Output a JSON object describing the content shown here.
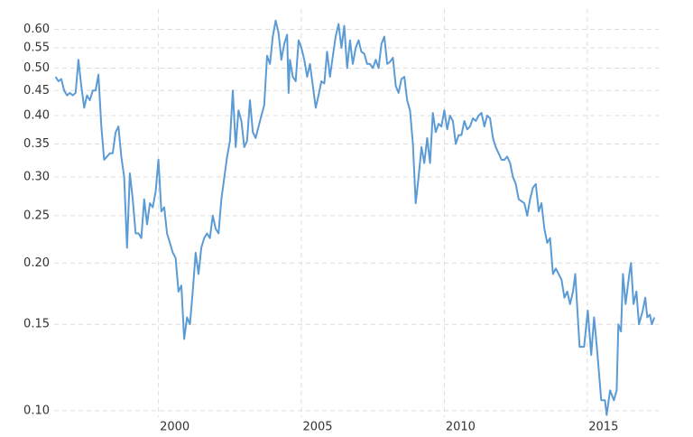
{
  "chart_data": {
    "type": "line",
    "log_y": true,
    "grid": true,
    "xlim": [
      1996.35,
      2017.5
    ],
    "xticks": [
      2000,
      2005,
      2010,
      2015
    ],
    "ylim": [
      0.097,
      0.66
    ],
    "yticks": [
      {
        "value": 0.1,
        "label": "0.10"
      },
      0.15,
      {
        "value": 0.2,
        "label": "0.20"
      },
      0.25,
      {
        "value": 0.3,
        "label": "0.30"
      },
      0.35,
      {
        "value": 0.4,
        "label": "0.40"
      },
      0.45,
      {
        "value": 0.5,
        "label": "0.50"
      },
      0.55,
      {
        "value": 0.6,
        "label": "0.60"
      }
    ],
    "series": [
      {
        "color": "#5b9bd5",
        "x": [
          1996.4,
          1996.5,
          1996.6,
          1996.7,
          1996.8,
          1996.9,
          1997.0,
          1997.1,
          1997.2,
          1997.3,
          1997.4,
          1997.5,
          1997.6,
          1997.7,
          1997.8,
          1997.9,
          1998.0,
          1998.1,
          1998.2,
          1998.3,
          1998.4,
          1998.5,
          1998.6,
          1998.7,
          1998.8,
          1998.9,
          1999.0,
          1999.1,
          1999.2,
          1999.3,
          1999.4,
          1999.5,
          1999.6,
          1999.7,
          1999.8,
          1999.9,
          2000.0,
          2000.1,
          2000.2,
          2000.3,
          2000.4,
          2000.5,
          2000.6,
          2000.7,
          2000.8,
          2000.9,
          2001.0,
          2001.1,
          2001.2,
          2001.3,
          2001.4,
          2001.5,
          2001.6,
          2001.7,
          2001.8,
          2001.9,
          2002.0,
          2002.1,
          2002.2,
          2002.4,
          2002.5,
          2002.6,
          2002.7,
          2002.8,
          2002.9,
          2003.0,
          2003.1,
          2003.2,
          2003.3,
          2003.4,
          2003.6,
          2003.7,
          2003.8,
          2003.9,
          2004.0,
          2004.1,
          2004.2,
          2004.3,
          2004.4,
          2004.5,
          2004.55,
          2004.6,
          2004.7,
          2004.8,
          2004.9,
          2005.0,
          2005.1,
          2005.2,
          2005.3,
          2005.4,
          2005.5,
          2005.6,
          2005.7,
          2005.8,
          2005.9,
          2006.0,
          2006.1,
          2006.2,
          2006.3,
          2006.4,
          2006.5,
          2006.6,
          2006.7,
          2006.8,
          2006.9,
          2007.0,
          2007.1,
          2007.2,
          2007.3,
          2007.4,
          2007.5,
          2007.6,
          2007.7,
          2007.8,
          2007.9,
          2008.0,
          2008.1,
          2008.2,
          2008.3,
          2008.4,
          2008.5,
          2008.6,
          2008.7,
          2008.8,
          2008.9,
          2009.0,
          2009.1,
          2009.2,
          2009.3,
          2009.4,
          2009.5,
          2009.6,
          2009.7,
          2009.8,
          2009.9,
          2010.0,
          2010.1,
          2010.2,
          2010.3,
          2010.4,
          2010.5,
          2010.6,
          2010.7,
          2010.8,
          2010.9,
          2011.0,
          2011.1,
          2011.2,
          2011.3,
          2011.4,
          2011.5,
          2011.6,
          2011.7,
          2011.8,
          2011.9,
          2012.0,
          2012.1,
          2012.2,
          2012.3,
          2012.4,
          2012.5,
          2012.6,
          2012.8,
          2012.9,
          2013.0,
          2013.1,
          2013.2,
          2013.3,
          2013.4,
          2013.5,
          2013.6,
          2013.7,
          2013.8,
          2013.9,
          2014.0,
          2014.1,
          2014.2,
          2014.3,
          2014.4,
          2014.5,
          2014.58,
          2014.73,
          2014.89,
          2015.02,
          2015.14,
          2015.24,
          2015.36,
          2015.49,
          2015.62,
          2015.68,
          2015.8,
          2015.93,
          2016.03,
          2016.09,
          2016.18,
          2016.25,
          2016.34,
          2016.47,
          2016.53,
          2016.62,
          2016.72,
          2016.81,
          2016.94,
          2017.03,
          2017.1,
          2017.19,
          2017.26,
          2017.35
        ],
        "values": [
          0.48,
          0.47,
          0.475,
          0.45,
          0.44,
          0.445,
          0.44,
          0.445,
          0.52,
          0.46,
          0.415,
          0.44,
          0.43,
          0.45,
          0.45,
          0.485,
          0.38,
          0.325,
          0.33,
          0.335,
          0.335,
          0.37,
          0.38,
          0.33,
          0.3,
          0.215,
          0.305,
          0.27,
          0.23,
          0.23,
          0.225,
          0.27,
          0.24,
          0.265,
          0.26,
          0.28,
          0.325,
          0.255,
          0.26,
          0.23,
          0.22,
          0.21,
          0.205,
          0.175,
          0.18,
          0.14,
          0.155,
          0.15,
          0.175,
          0.21,
          0.19,
          0.215,
          0.225,
          0.23,
          0.225,
          0.25,
          0.235,
          0.23,
          0.27,
          0.33,
          0.355,
          0.45,
          0.345,
          0.41,
          0.39,
          0.345,
          0.355,
          0.43,
          0.37,
          0.36,
          0.4,
          0.42,
          0.53,
          0.51,
          0.58,
          0.625,
          0.59,
          0.52,
          0.56,
          0.585,
          0.445,
          0.52,
          0.48,
          0.47,
          0.57,
          0.55,
          0.52,
          0.48,
          0.51,
          0.46,
          0.415,
          0.44,
          0.47,
          0.465,
          0.54,
          0.48,
          0.53,
          0.58,
          0.615,
          0.55,
          0.61,
          0.5,
          0.57,
          0.51,
          0.55,
          0.57,
          0.54,
          0.535,
          0.51,
          0.51,
          0.5,
          0.52,
          0.5,
          0.56,
          0.58,
          0.51,
          0.515,
          0.525,
          0.46,
          0.445,
          0.475,
          0.48,
          0.43,
          0.41,
          0.35,
          0.265,
          0.3,
          0.345,
          0.32,
          0.36,
          0.32,
          0.405,
          0.37,
          0.385,
          0.38,
          0.41,
          0.375,
          0.4,
          0.39,
          0.35,
          0.365,
          0.365,
          0.39,
          0.375,
          0.38,
          0.395,
          0.39,
          0.4,
          0.405,
          0.38,
          0.4,
          0.395,
          0.36,
          0.345,
          0.335,
          0.325,
          0.325,
          0.33,
          0.32,
          0.3,
          0.29,
          0.27,
          0.265,
          0.25,
          0.27,
          0.285,
          0.29,
          0.255,
          0.265,
          0.235,
          0.22,
          0.225,
          0.19,
          0.195,
          0.19,
          0.185,
          0.17,
          0.175,
          0.165,
          0.175,
          0.19,
          0.135,
          0.135,
          0.16,
          0.13,
          0.155,
          0.13,
          0.105,
          0.105,
          0.098,
          0.11,
          0.105,
          0.11,
          0.15,
          0.145,
          0.19,
          0.165,
          0.19,
          0.2,
          0.165,
          0.175,
          0.15,
          0.16,
          0.17,
          0.155,
          0.157,
          0.15,
          0.155
        ]
      }
    ]
  }
}
